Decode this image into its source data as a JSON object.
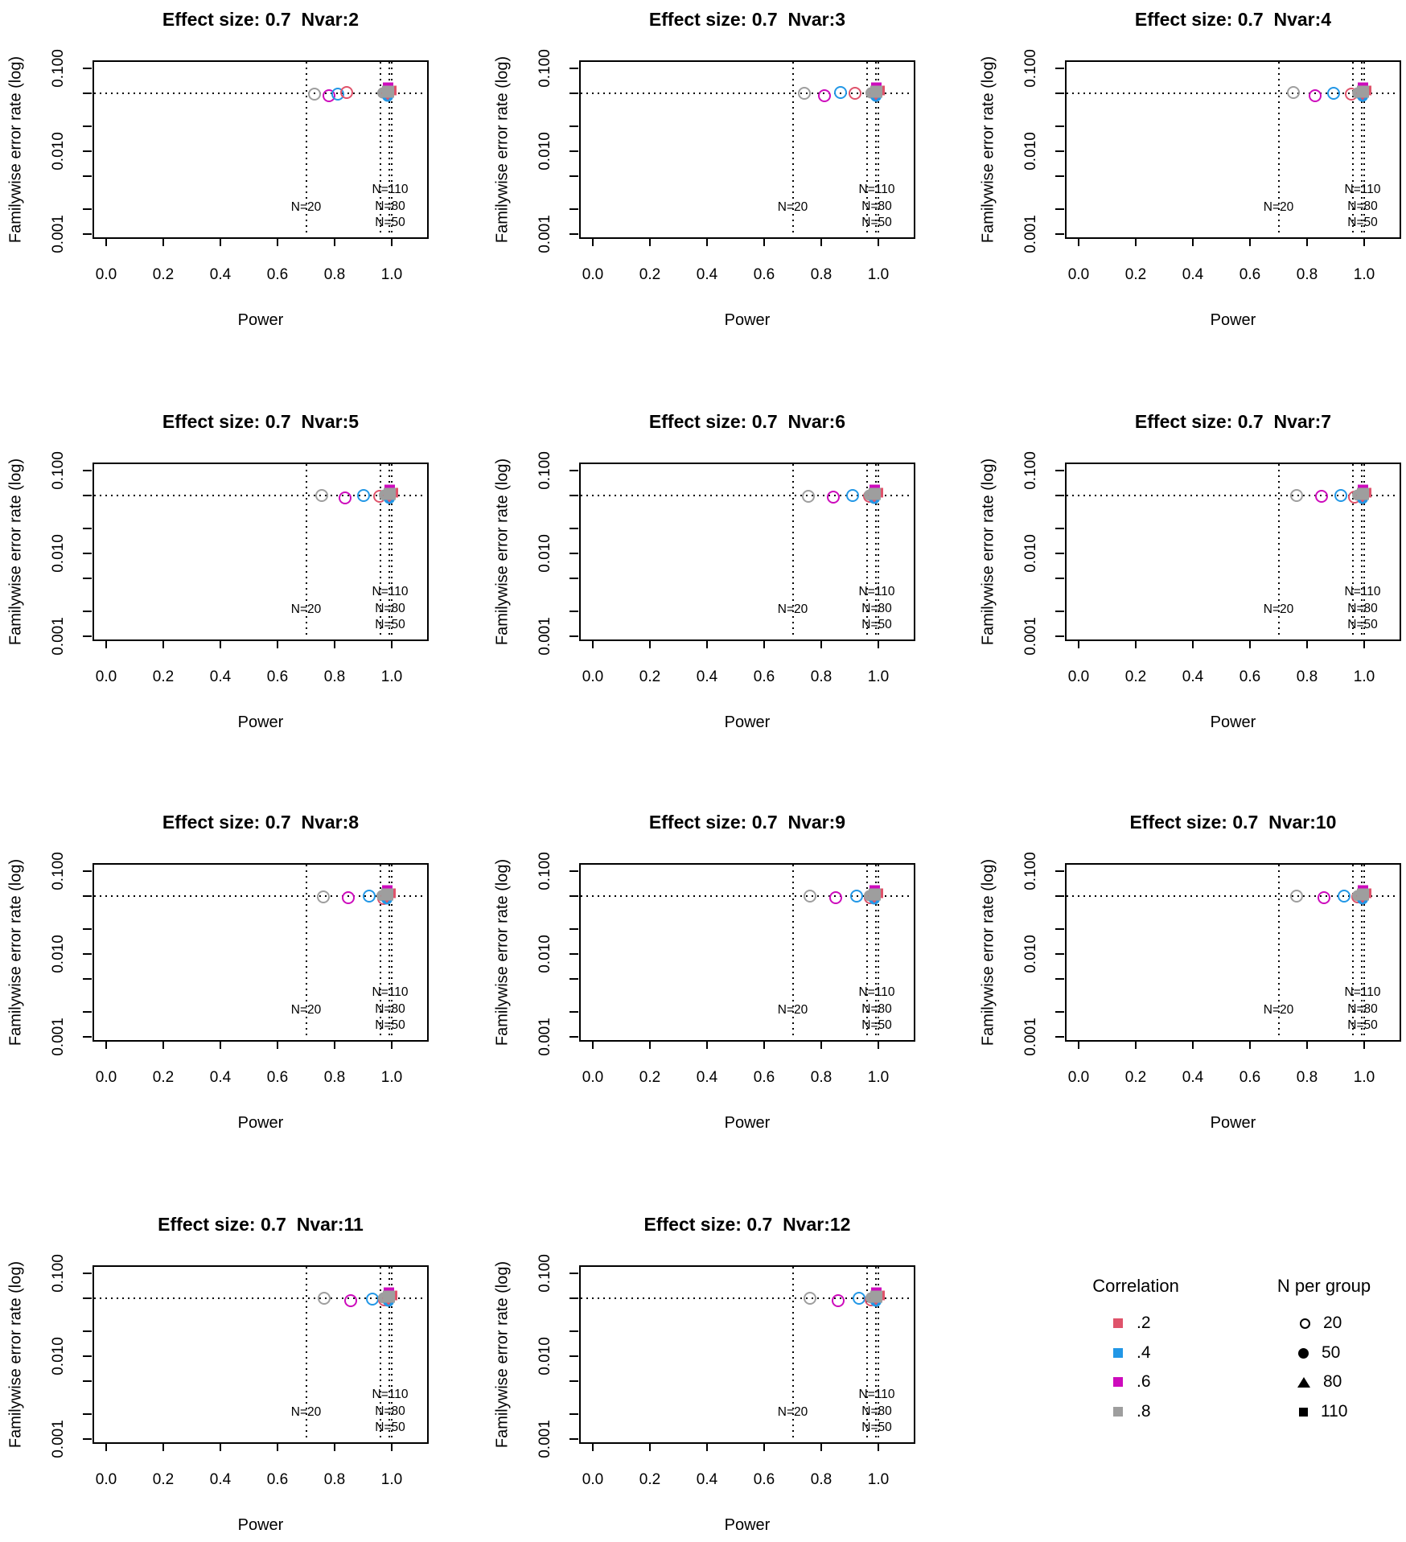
{
  "colors": {
    "corr_02": "#DF536B",
    "corr_04": "#2297E6",
    "corr_06": "#CD0BBC",
    "corr_08": "#9E9E9E",
    "axis": "#000000"
  },
  "chart_data": {
    "type": "scatter",
    "layout": "4x3 grid of panels, legend in last cell",
    "xlabel": "Power",
    "ylabel": "Familywise error rate (log)",
    "x_ticks": [
      0.0,
      0.2,
      0.4,
      0.6,
      0.8,
      1.0
    ],
    "x_tick_labels": [
      "0.0",
      "0.2",
      "0.4",
      "0.6",
      "0.8",
      "1.0"
    ],
    "y_scale": "log",
    "y_major_ticks": [
      0.1,
      0.01,
      0.001
    ],
    "y_major_tick_labels": [
      "0.100",
      "0.010",
      "0.001"
    ],
    "y_minor_ticks": [
      0.05,
      0.02,
      0.005,
      0.002
    ],
    "alpha_reference_fwer": 0.05,
    "reference_lines": [
      {
        "label": "N=110",
        "power": 0.999
      },
      {
        "label": "N=80",
        "power": 0.991
      },
      {
        "label": "N=50",
        "power": 0.96
      },
      {
        "label": "N=20",
        "power": 0.7
      }
    ],
    "panels": [
      {
        "nvar": 2,
        "title": "Effect size: 0.7  Nvar:2",
        "open_circles": [
          {
            "correlation": ".8",
            "color": "#9E9E9E",
            "power": 0.73,
            "fwer": 0.049
          },
          {
            "correlation": ".6",
            "color": "#CD0BBC",
            "power": 0.779,
            "fwer": 0.047
          },
          {
            "correlation": ".4",
            "color": "#2297E6",
            "power": 0.812,
            "fwer": 0.049
          },
          {
            "correlation": ".2",
            "color": "#DF536B",
            "power": 0.843,
            "fwer": 0.051
          }
        ],
        "cluster": {
          "power": 0.989,
          "fwer": 0.05,
          "note": "N=50/80/110 all correlations overlapping"
        }
      },
      {
        "nvar": 3,
        "title": "Effect size: 0.7  Nvar:3",
        "open_circles": [
          {
            "correlation": ".8",
            "color": "#9E9E9E",
            "power": 0.742,
            "fwer": 0.05
          },
          {
            "correlation": ".6",
            "color": "#CD0BBC",
            "power": 0.812,
            "fwer": 0.047
          },
          {
            "correlation": ".4",
            "color": "#2297E6",
            "power": 0.868,
            "fwer": 0.051
          },
          {
            "correlation": ".2",
            "color": "#DF536B",
            "power": 0.918,
            "fwer": 0.05
          }
        ],
        "cluster": {
          "power": 0.995,
          "fwer": 0.05,
          "note": "N=50/80/110 all correlations overlapping"
        }
      },
      {
        "nvar": 4,
        "title": "Effect size: 0.7  Nvar:4",
        "open_circles": [
          {
            "correlation": ".8",
            "color": "#9E9E9E",
            "power": 0.752,
            "fwer": 0.051
          },
          {
            "correlation": ".6",
            "color": "#CD0BBC",
            "power": 0.827,
            "fwer": 0.047
          },
          {
            "correlation": ".4",
            "color": "#2297E6",
            "power": 0.893,
            "fwer": 0.05
          },
          {
            "correlation": ".2",
            "color": "#DF536B",
            "power": 0.955,
            "fwer": 0.049
          }
        ],
        "cluster": {
          "power": 0.998,
          "fwer": 0.05,
          "note": "N=50/80/110 all correlations overlapping"
        }
      },
      {
        "nvar": 5,
        "title": "Effect size: 0.7  Nvar:5",
        "open_circles": [
          {
            "correlation": ".8",
            "color": "#9E9E9E",
            "power": 0.755,
            "fwer": 0.05
          },
          {
            "correlation": ".6",
            "color": "#CD0BBC",
            "power": 0.836,
            "fwer": 0.047
          },
          {
            "correlation": ".4",
            "color": "#2297E6",
            "power": 0.901,
            "fwer": 0.05
          },
          {
            "correlation": ".2",
            "color": "#DF536B",
            "power": 0.957,
            "fwer": 0.049
          }
        ],
        "cluster": {
          "power": 0.993,
          "fwer": 0.05,
          "note": "N=50/80/110 all correlations overlapping"
        }
      },
      {
        "nvar": 6,
        "title": "Effect size: 0.7  Nvar:6",
        "open_circles": [
          {
            "correlation": ".8",
            "color": "#9E9E9E",
            "power": 0.756,
            "fwer": 0.049
          },
          {
            "correlation": ".6",
            "color": "#CD0BBC",
            "power": 0.842,
            "fwer": 0.048
          },
          {
            "correlation": ".4",
            "color": "#2297E6",
            "power": 0.91,
            "fwer": 0.05
          },
          {
            "correlation": ".2",
            "color": "#DF536B",
            "power": 0.968,
            "fwer": 0.049
          }
        ],
        "cluster": {
          "power": 0.99,
          "fwer": 0.05,
          "note": "N=50/80/110 all correlations overlapping"
        }
      },
      {
        "nvar": 7,
        "title": "Effect size: 0.7  Nvar:7",
        "open_circles": [
          {
            "correlation": ".8",
            "color": "#9E9E9E",
            "power": 0.762,
            "fwer": 0.05
          },
          {
            "correlation": ".6",
            "color": "#CD0BBC",
            "power": 0.851,
            "fwer": 0.049
          },
          {
            "correlation": ".4",
            "color": "#2297E6",
            "power": 0.919,
            "fwer": 0.05
          },
          {
            "correlation": ".2",
            "color": "#DF536B",
            "power": 0.965,
            "fwer": 0.048
          }
        ],
        "cluster": {
          "power": 0.996,
          "fwer": 0.05,
          "note": "N=50/80/110 all correlations overlapping"
        }
      },
      {
        "nvar": 8,
        "title": "Effect size: 0.7  Nvar:8",
        "open_circles": [
          {
            "correlation": ".8",
            "color": "#9E9E9E",
            "power": 0.76,
            "fwer": 0.049
          },
          {
            "correlation": ".6",
            "color": "#CD0BBC",
            "power": 0.849,
            "fwer": 0.048
          },
          {
            "correlation": ".4",
            "color": "#2297E6",
            "power": 0.921,
            "fwer": 0.05
          },
          {
            "correlation": ".2",
            "color": "#DF536B",
            "power": 0.972,
            "fwer": 0.047
          }
        ],
        "cluster": {
          "power": 0.986,
          "fwer": 0.05,
          "note": "N=50/80/110 all correlations overlapping"
        }
      },
      {
        "nvar": 9,
        "title": "Effect size: 0.7  Nvar:9",
        "open_circles": [
          {
            "correlation": ".8",
            "color": "#9E9E9E",
            "power": 0.761,
            "fwer": 0.05
          },
          {
            "correlation": ".6",
            "color": "#CD0BBC",
            "power": 0.852,
            "fwer": 0.048
          },
          {
            "correlation": ".4",
            "color": "#2297E6",
            "power": 0.925,
            "fwer": 0.05
          },
          {
            "correlation": ".2",
            "color": "#DF536B",
            "power": 0.972,
            "fwer": 0.048
          }
        ],
        "cluster": {
          "power": 0.99,
          "fwer": 0.05,
          "note": "N=50/80/110 all correlations overlapping"
        }
      },
      {
        "nvar": 10,
        "title": "Effect size: 0.7  Nvar:10",
        "open_circles": [
          {
            "correlation": ".8",
            "color": "#9E9E9E",
            "power": 0.763,
            "fwer": 0.05
          },
          {
            "correlation": ".6",
            "color": "#CD0BBC",
            "power": 0.858,
            "fwer": 0.048
          },
          {
            "correlation": ".4",
            "color": "#2297E6",
            "power": 0.93,
            "fwer": 0.05
          },
          {
            "correlation": ".2",
            "color": "#DF536B",
            "power": 0.978,
            "fwer": 0.049
          }
        ],
        "cluster": {
          "power": 0.998,
          "fwer": 0.05,
          "note": "N=50/80/110 all correlations overlapping"
        }
      },
      {
        "nvar": 11,
        "title": "Effect size: 0.7  Nvar:11",
        "open_circles": [
          {
            "correlation": ".8",
            "color": "#9E9E9E",
            "power": 0.763,
            "fwer": 0.05
          },
          {
            "correlation": ".6",
            "color": "#CD0BBC",
            "power": 0.856,
            "fwer": 0.047
          },
          {
            "correlation": ".4",
            "color": "#2297E6",
            "power": 0.932,
            "fwer": 0.049
          },
          {
            "correlation": ".2",
            "color": "#DF536B",
            "power": 0.974,
            "fwer": 0.048
          }
        ],
        "cluster": {
          "power": 0.991,
          "fwer": 0.05,
          "note": "N=50/80/110 all correlations overlapping"
        }
      },
      {
        "nvar": 12,
        "title": "Effect size: 0.7  Nvar:12",
        "open_circles": [
          {
            "correlation": ".8",
            "color": "#9E9E9E",
            "power": 0.761,
            "fwer": 0.05
          },
          {
            "correlation": ".6",
            "color": "#CD0BBC",
            "power": 0.859,
            "fwer": 0.047
          },
          {
            "correlation": ".4",
            "color": "#2297E6",
            "power": 0.931,
            "fwer": 0.05
          },
          {
            "correlation": ".2",
            "color": "#DF536B",
            "power": 0.976,
            "fwer": 0.048
          }
        ],
        "cluster": {
          "power": 0.995,
          "fwer": 0.05,
          "note": "N=50/80/110 all correlations overlapping"
        }
      }
    ]
  },
  "legend": {
    "correlation": {
      "title": "Correlation",
      "items": [
        {
          "label": ".2",
          "color": "#DF536B"
        },
        {
          "label": ".4",
          "color": "#2297E6"
        },
        {
          "label": ".6",
          "color": "#CD0BBC"
        },
        {
          "label": ".8",
          "color": "#9E9E9E"
        }
      ]
    },
    "n_per_group": {
      "title": "N per group",
      "items": [
        {
          "label": "20",
          "symbol": "open-circle"
        },
        {
          "label": "50",
          "symbol": "filled-circle"
        },
        {
          "label": "80",
          "symbol": "filled-triangle"
        },
        {
          "label": "110",
          "symbol": "filled-square"
        }
      ]
    }
  }
}
